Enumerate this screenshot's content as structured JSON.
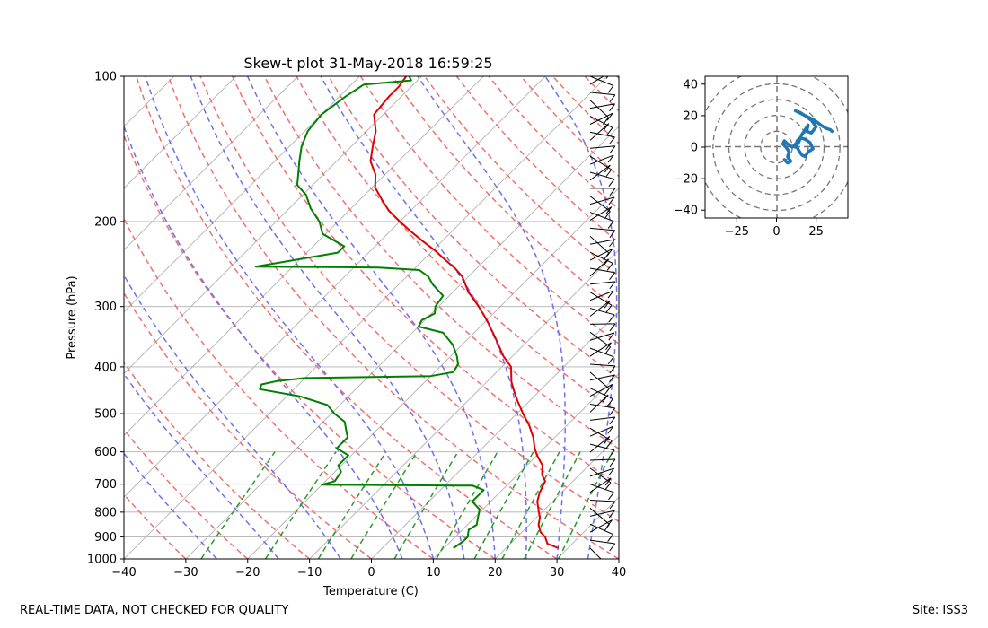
{
  "footer": {
    "quality_note": "REAL-TIME DATA, NOT CHECKED FOR QUALITY",
    "site": "Site: ISS3"
  },
  "chart_data": [
    {
      "type": "skew-t",
      "title": "Skew-t plot 31-May-2018 16:59:25",
      "xlabel": "Temperature (C)",
      "ylabel": "Pressure (hPa)",
      "xlim": [
        -40,
        40
      ],
      "ylim_pressure": [
        1000,
        100
      ],
      "x_ticks": [
        -40,
        -30,
        -20,
        -10,
        0,
        10,
        20,
        30,
        40
      ],
      "x_tick_labels": [
        "−40",
        "−30",
        "−20",
        "−10",
        "0",
        "10",
        "20",
        "30",
        "40"
      ],
      "p_ticks": [
        1000,
        900,
        800,
        700,
        600,
        500,
        400,
        300,
        200,
        100
      ],
      "p_tick_labels": [
        "1000",
        "900",
        "800",
        "700",
        "600",
        "500",
        "400",
        "300",
        "200",
        "100"
      ],
      "series": [
        {
          "name": "Temperature",
          "color": "#e00000",
          "points": [
            [
              950,
              28.5
            ],
            [
              930,
              26.0
            ],
            [
              900,
              24.5
            ],
            [
              880,
              23.0
            ],
            [
              850,
              21.5
            ],
            [
              820,
              20.5
            ],
            [
              800,
              19.5
            ],
            [
              760,
              17.5
            ],
            [
              730,
              16.5
            ],
            [
              710,
              16.0
            ],
            [
              690,
              15.5
            ],
            [
              670,
              14.0
            ],
            [
              640,
              12.5
            ],
            [
              610,
              10.0
            ],
            [
              590,
              8.5
            ],
            [
              560,
              6.5
            ],
            [
              530,
              4.0
            ],
            [
              500,
              1.0
            ],
            [
              470,
              -2.0
            ],
            [
              450,
              -4.0
            ],
            [
              430,
              -6.0
            ],
            [
              400,
              -8.5
            ],
            [
              380,
              -11.5
            ],
            [
              350,
              -15.5
            ],
            [
              320,
              -20.0
            ],
            [
              300,
              -23.5
            ],
            [
              280,
              -27.5
            ],
            [
              260,
              -31.0
            ],
            [
              250,
              -33.5
            ],
            [
              240,
              -36.5
            ],
            [
              230,
              -39.5
            ],
            [
              220,
              -43.0
            ],
            [
              210,
              -46.5
            ],
            [
              200,
              -50.0
            ],
            [
              190,
              -53.5
            ],
            [
              180,
              -56.5
            ],
            [
              170,
              -59.5
            ],
            [
              160,
              -61.5
            ],
            [
              150,
              -64.5
            ],
            [
              140,
              -66.5
            ],
            [
              130,
              -68.5
            ],
            [
              120,
              -71.5
            ],
            [
              110,
              -72.0
            ],
            [
              105,
              -72.0
            ],
            [
              100,
              -72.5
            ]
          ]
        },
        {
          "name": "Dewpoint",
          "color": "#008000",
          "points": [
            [
              950,
              11.5
            ],
            [
              920,
              12.0
            ],
            [
              900,
              12.0
            ],
            [
              870,
              11.0
            ],
            [
              850,
              11.5
            ],
            [
              820,
              10.5
            ],
            [
              790,
              9.5
            ],
            [
              760,
              7.0
            ],
            [
              720,
              7.0
            ],
            [
              705,
              4.5
            ],
            [
              702,
              -20.0
            ],
            [
              690,
              -18.5
            ],
            [
              660,
              -19.0
            ],
            [
              640,
              -20.5
            ],
            [
              610,
              -20.5
            ],
            [
              590,
              -23.5
            ],
            [
              560,
              -23.5
            ],
            [
              540,
              -25.0
            ],
            [
              520,
              -26.5
            ],
            [
              500,
              -29.5
            ],
            [
              480,
              -32.0
            ],
            [
              460,
              -38.0
            ],
            [
              445,
              -45.5
            ],
            [
              435,
              -46.0
            ],
            [
              428,
              -44.0
            ],
            [
              422,
              -40.0
            ],
            [
              418,
              -20.0
            ],
            [
              410,
              -17.0
            ],
            [
              395,
              -17.5
            ],
            [
              380,
              -19.0
            ],
            [
              360,
              -21.5
            ],
            [
              340,
              -25.0
            ],
            [
              330,
              -30.0
            ],
            [
              320,
              -30.5
            ],
            [
              310,
              -29.5
            ],
            [
              300,
              -30.5
            ],
            [
              285,
              -31.0
            ],
            [
              270,
              -34.5
            ],
            [
              260,
              -36.5
            ],
            [
              252,
              -39.0
            ],
            [
              249,
              -46.0
            ],
            [
              248,
              -66.0
            ],
            [
              245,
              -64.0
            ],
            [
              232,
              -55.0
            ],
            [
              225,
              -55.0
            ],
            [
              212,
              -60.5
            ],
            [
              200,
              -63.0
            ],
            [
              188,
              -66.5
            ],
            [
              176,
              -69.5
            ],
            [
              168,
              -72.5
            ],
            [
              160,
              -74.0
            ],
            [
              150,
              -76.0
            ],
            [
              140,
              -78.0
            ],
            [
              130,
              -79.5
            ],
            [
              120,
              -80.0
            ],
            [
              110,
              -79.0
            ],
            [
              104,
              -78.0
            ],
            [
              102,
              -71.0
            ],
            [
              100,
              -72.0
            ]
          ]
        }
      ],
      "overlays": {
        "isotherms": "gray",
        "dry_adiabats": "red dashed",
        "moist_adiabats": "blue dashed",
        "mixing_ratio_lines": "green dashed"
      },
      "wind_barbs": {
        "count": 60,
        "pressures_top": 100,
        "pressures_bottom": 950
      }
    },
    {
      "type": "hodograph",
      "xlim": [
        -45,
        45
      ],
      "ylim": [
        -45,
        45
      ],
      "x_ticks": [
        -25,
        0,
        25
      ],
      "x_tick_labels": [
        "−25",
        "0",
        "25"
      ],
      "y_ticks": [
        -40,
        -20,
        0,
        20,
        40
      ],
      "y_tick_labels": [
        "−40",
        "−20",
        "0",
        "20",
        "40"
      ],
      "rings": [
        10,
        20,
        30,
        40,
        50
      ],
      "color": "#1f77b4",
      "points": [
        [
          5,
          -8
        ],
        [
          7,
          -10
        ],
        [
          9,
          -9
        ],
        [
          7,
          -6
        ],
        [
          8,
          -3
        ],
        [
          6,
          0
        ],
        [
          4,
          2
        ],
        [
          5,
          4
        ],
        [
          7,
          2
        ],
        [
          10,
          0
        ],
        [
          12,
          2
        ],
        [
          14,
          -2
        ],
        [
          16,
          -5
        ],
        [
          18,
          -6
        ],
        [
          20,
          -3
        ],
        [
          23,
          -1
        ],
        [
          21,
          3
        ],
        [
          18,
          5
        ],
        [
          15,
          6
        ],
        [
          13,
          4
        ],
        [
          12,
          0
        ],
        [
          14,
          3
        ],
        [
          16,
          8
        ],
        [
          18,
          11
        ],
        [
          20,
          14
        ],
        [
          19,
          10
        ],
        [
          22,
          9
        ],
        [
          25,
          13
        ],
        [
          22,
          17
        ],
        [
          18,
          20
        ],
        [
          15,
          22
        ],
        [
          12,
          23
        ],
        [
          16,
          21
        ],
        [
          20,
          19
        ],
        [
          24,
          17
        ],
        [
          28,
          14
        ],
        [
          31,
          12
        ],
        [
          34,
          11
        ],
        [
          35,
          10
        ]
      ]
    }
  ]
}
